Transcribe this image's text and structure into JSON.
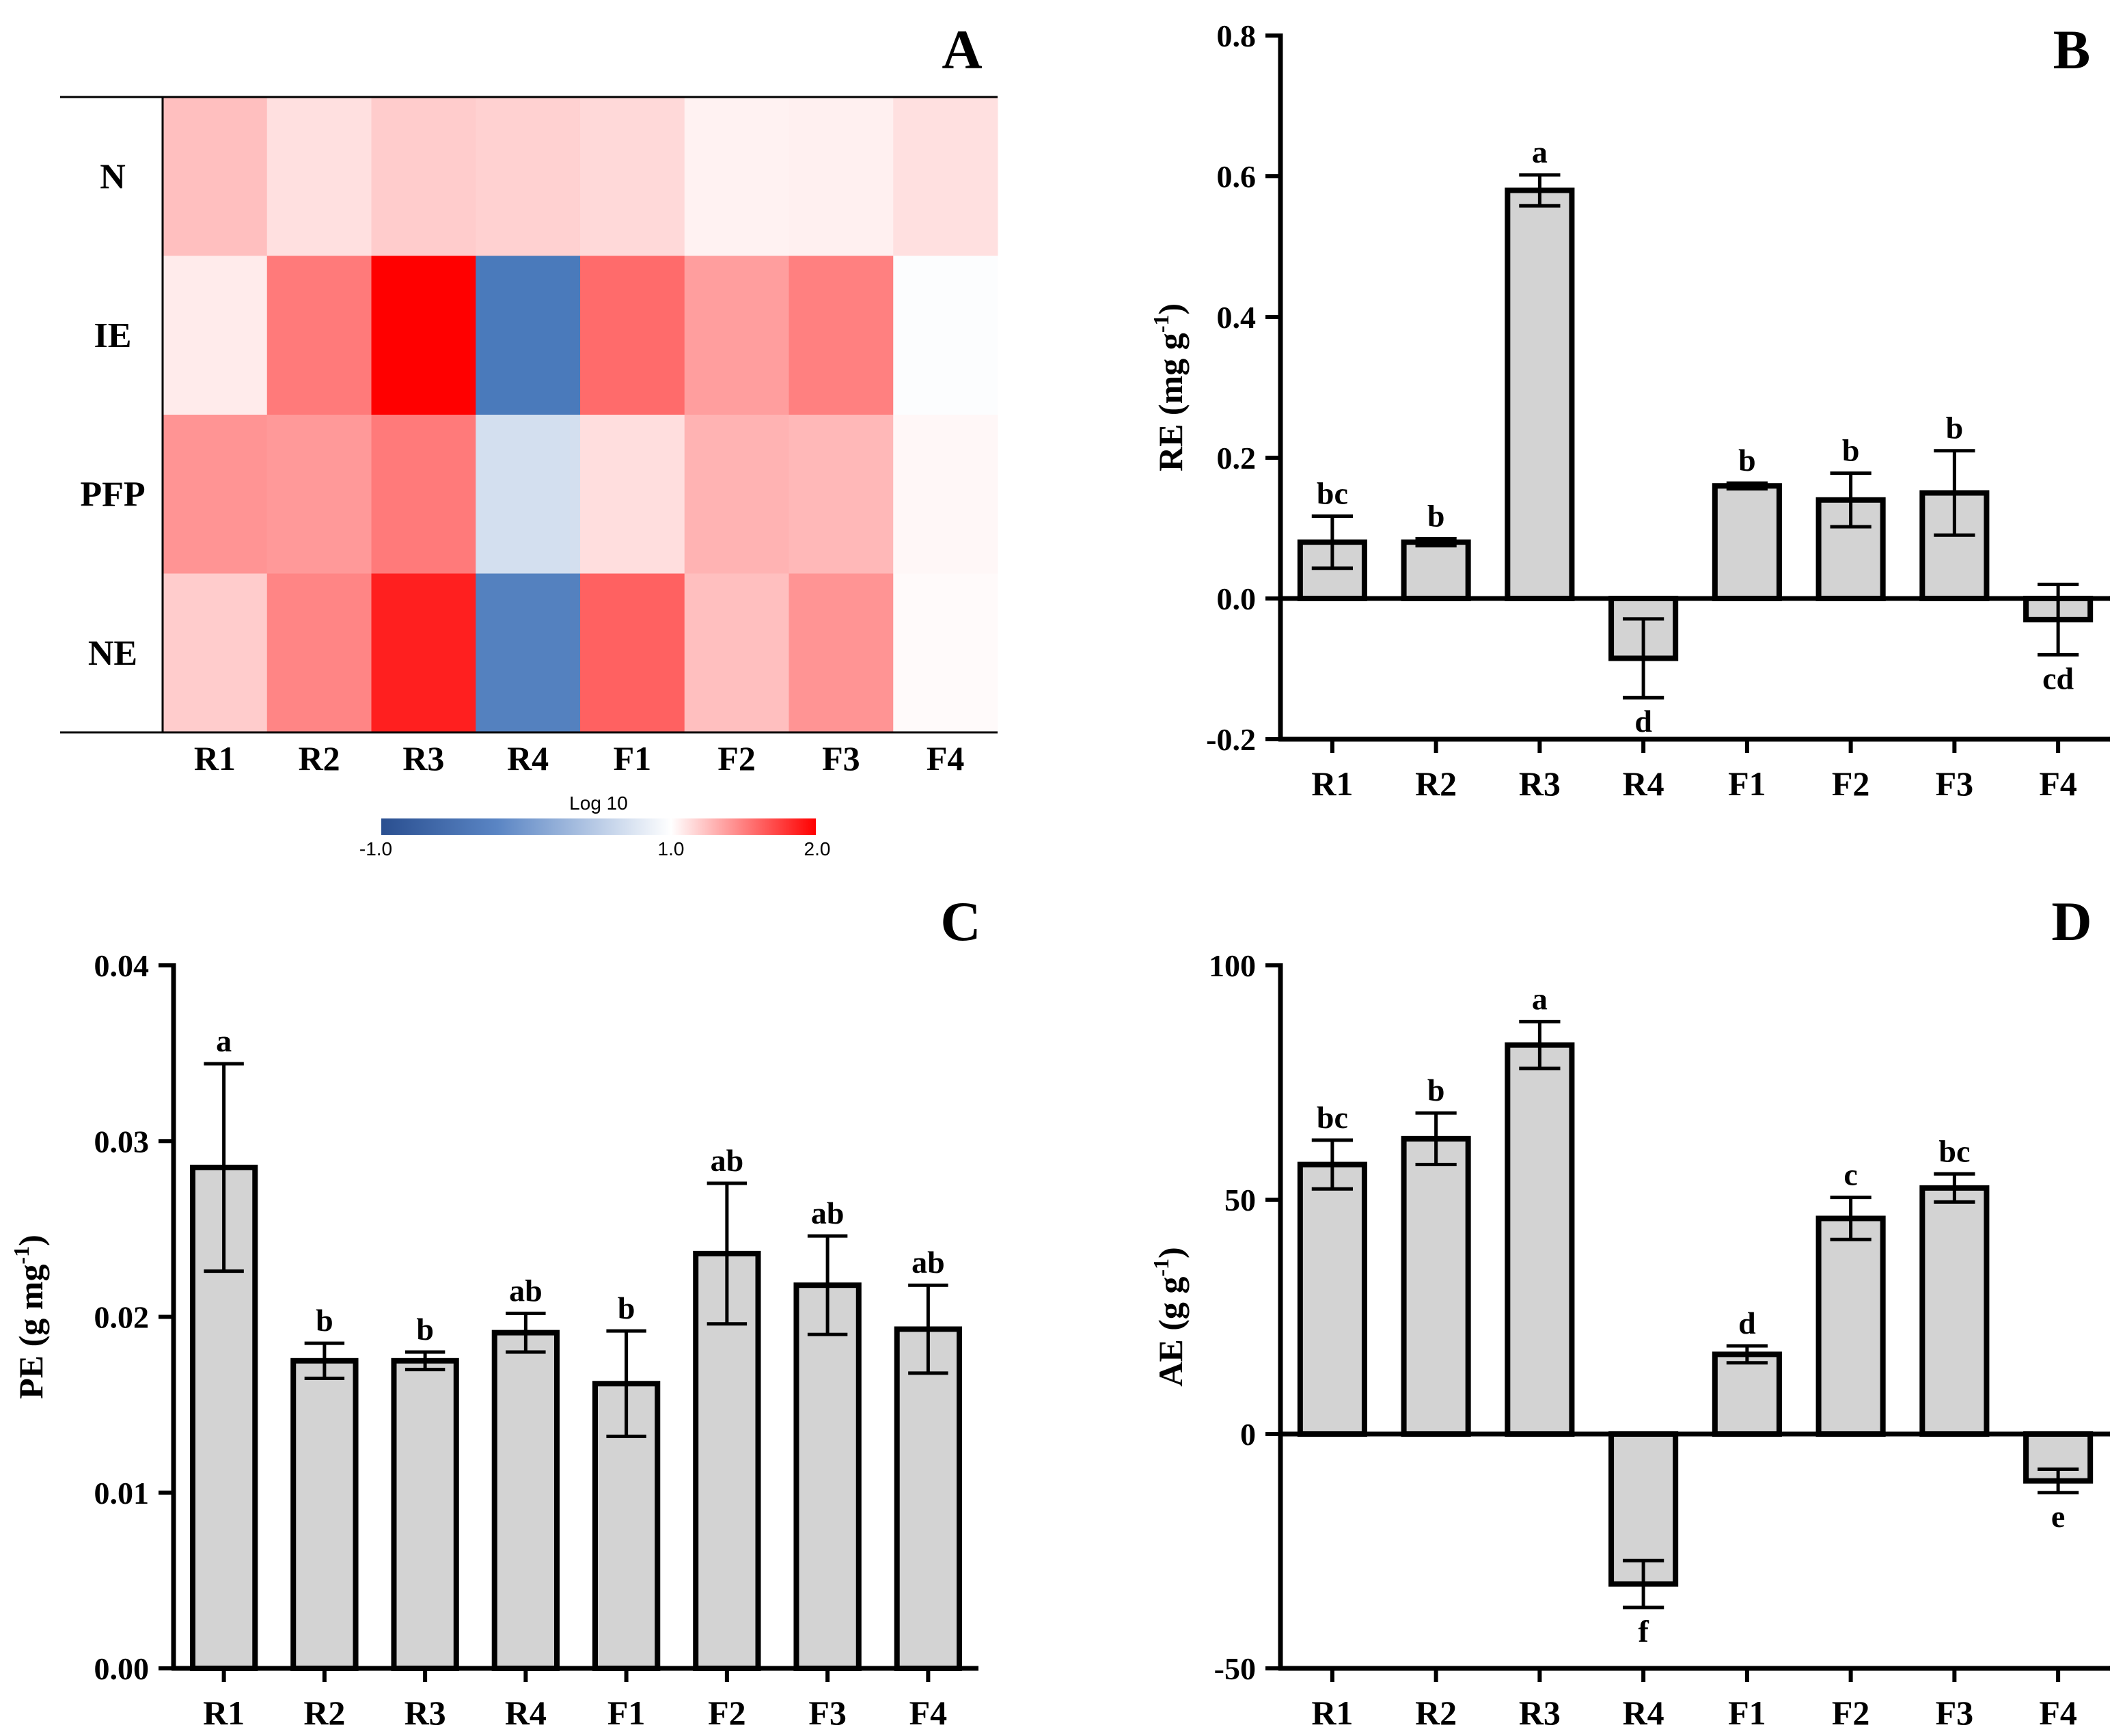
{
  "chart_data": [
    {
      "panel": "A",
      "type": "heatmap",
      "panel_label": "A",
      "rows": [
        "N",
        "IE",
        "PFP",
        "NE"
      ],
      "columns": [
        "R1",
        "R2",
        "R3",
        "R4",
        "F1",
        "F2",
        "F3",
        "F4"
      ],
      "values": [
        [
          1.25,
          1.12,
          1.2,
          1.18,
          1.15,
          1.05,
          1.06,
          1.12
        ],
        [
          1.08,
          1.52,
          2.0,
          -0.85,
          1.58,
          1.38,
          1.5,
          0.97
        ],
        [
          1.42,
          1.4,
          1.52,
          0.55,
          1.13,
          1.3,
          1.28,
          1.03
        ],
        [
          1.2,
          1.48,
          1.88,
          -0.75,
          1.62,
          1.25,
          1.42,
          1.02
        ]
      ],
      "colorbar": {
        "title": "Log 10",
        "min": -1.0,
        "mid": 1.0,
        "max": 2.0,
        "min_label": "-1.0",
        "mid_label": "1.0",
        "max_label": "2.0"
      },
      "colors": {
        "low": "#3b6fb6",
        "mid": "#ffffff",
        "high": "#ff0000"
      }
    },
    {
      "panel": "B",
      "type": "bar",
      "panel_label": "B",
      "ylabel": "RE (mg g",
      "ylabel_sup": "-1",
      "ylabel_end": ")",
      "ylim": [
        -0.2,
        0.8
      ],
      "yticks": [
        -0.2,
        0.0,
        0.2,
        0.4,
        0.6,
        0.8
      ],
      "ytick_labels": [
        "-0.2",
        "0.0",
        "0.2",
        "0.4",
        "0.6",
        "0.8"
      ],
      "categories": [
        "R1",
        "R2",
        "R3",
        "R4",
        "F1",
        "F2",
        "F3",
        "F4"
      ],
      "values": [
        0.08,
        0.08,
        0.58,
        -0.085,
        0.16,
        0.14,
        0.15,
        -0.03
      ],
      "errors": [
        0.037,
        0.005,
        0.022,
        0.056,
        0.004,
        0.038,
        0.06,
        0.05
      ],
      "letters": [
        "bc",
        "b",
        "a",
        "d",
        "b",
        "b",
        "b",
        "cd"
      ]
    },
    {
      "panel": "C",
      "type": "bar",
      "panel_label": "C",
      "ylabel": "PE (g mg",
      "ylabel_sup": "-1",
      "ylabel_end": ")",
      "ylim": [
        0.0,
        0.04
      ],
      "yticks": [
        0.0,
        0.01,
        0.02,
        0.03,
        0.04
      ],
      "ytick_labels": [
        "0.00",
        "0.01",
        "0.02",
        "0.03",
        "0.04"
      ],
      "categories": [
        "R1",
        "R2",
        "R3",
        "R4",
        "F1",
        "F2",
        "F3",
        "F4"
      ],
      "values": [
        0.0285,
        0.0175,
        0.0175,
        0.0191,
        0.0162,
        0.0236,
        0.0218,
        0.0193
      ],
      "errors": [
        0.0059,
        0.001,
        0.0005,
        0.0011,
        0.003,
        0.004,
        0.0028,
        0.0025
      ],
      "letters": [
        "a",
        "b",
        "b",
        "ab",
        "b",
        "ab",
        "ab",
        "ab"
      ]
    },
    {
      "panel": "D",
      "type": "bar",
      "panel_label": "D",
      "ylabel": "AE (g g",
      "ylabel_sup": "-1",
      "ylabel_end": ")",
      "ylim": [
        -50,
        100
      ],
      "yticks": [
        -50,
        0,
        50,
        100
      ],
      "ytick_labels": [
        "-50",
        "0",
        "50",
        "100"
      ],
      "categories": [
        "R1",
        "R2",
        "R3",
        "R4",
        "F1",
        "F2",
        "F3",
        "F4"
      ],
      "values": [
        57.5,
        63.0,
        83.0,
        -32.0,
        17.0,
        46.0,
        52.5,
        -10.0
      ],
      "errors": [
        5.2,
        5.5,
        5.0,
        5.0,
        1.8,
        4.5,
        3.0,
        2.5
      ],
      "letters": [
        "bc",
        "b",
        "a",
        "f",
        "d",
        "c",
        "bc",
        "e"
      ]
    }
  ],
  "colors": {
    "bar_fill": "#d3d3d3",
    "axis": "#000000"
  }
}
